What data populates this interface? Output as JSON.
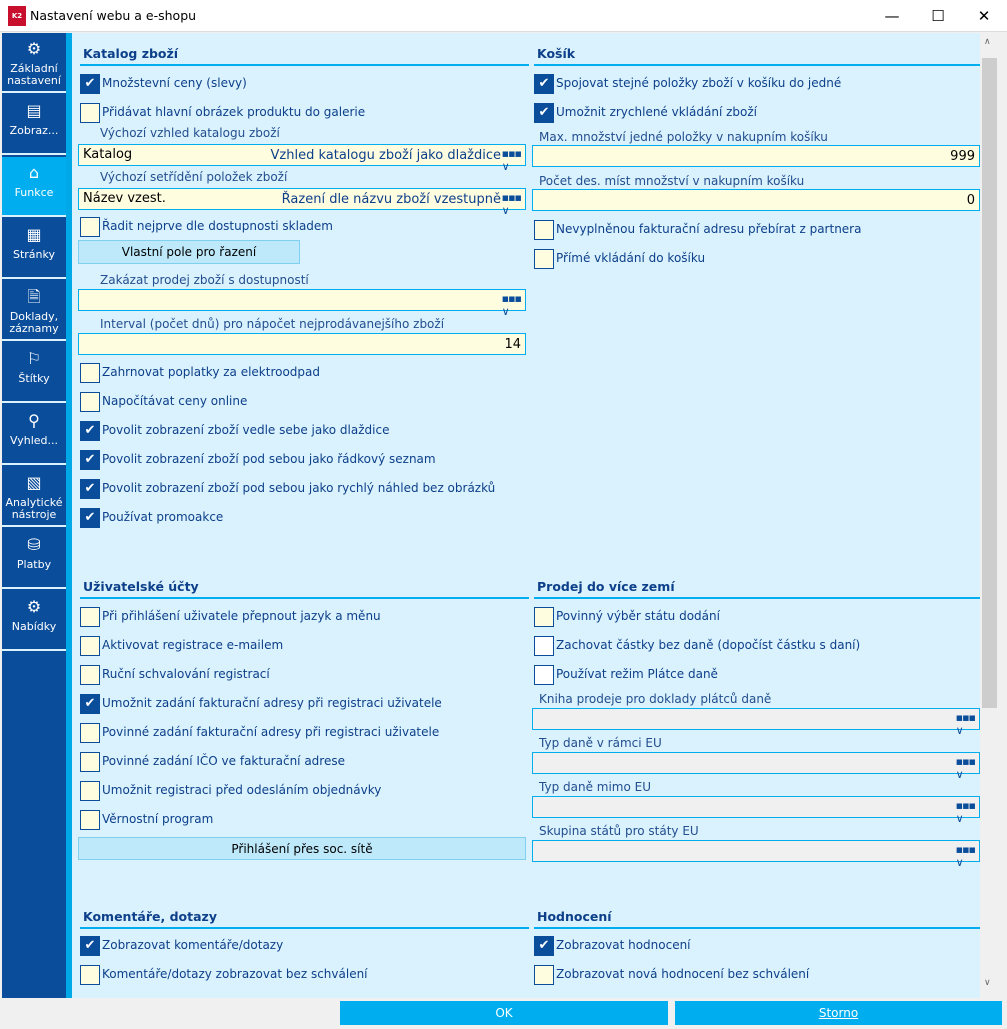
{
  "window": {
    "title": "Nastavení webu a e-shopu",
    "logo": "K2",
    "minimize": "—",
    "maximize": "☐",
    "close": "✕"
  },
  "sidebar": {
    "items": [
      {
        "label": "Základní nastavení",
        "icon": "gear-icon",
        "glyph": "⚙"
      },
      {
        "label": "Zobraz...",
        "icon": "list-icon",
        "glyph": "▤"
      },
      {
        "label": "Funkce",
        "icon": "tag-icon",
        "glyph": "⌂",
        "active": true
      },
      {
        "label": "Stránky",
        "icon": "page-icon",
        "glyph": "▦"
      },
      {
        "label": "Doklady, záznamy",
        "icon": "document-icon",
        "glyph": "🗎"
      },
      {
        "label": "Štítky",
        "icon": "bookmark-icon",
        "glyph": "⚐"
      },
      {
        "label": "Vyhled...",
        "icon": "search-icon",
        "glyph": "⚲"
      },
      {
        "label": "Analytické nástroje",
        "icon": "chart-icon",
        "glyph": "▧"
      },
      {
        "label": "Platby",
        "icon": "payment-icon",
        "glyph": "⛁"
      },
      {
        "label": "Nabídky",
        "icon": "discount-icon",
        "glyph": "⚙"
      }
    ]
  },
  "katalog": {
    "title": "Katalog zboží",
    "cb": [
      "Množstevní ceny (slevy)",
      "Přidávat hlavní obrázek produktu do galerie",
      "Řadit nejprve dle dostupnosti skladem",
      "Zahrnovat poplatky za elektroodpad",
      "Napočítávat ceny online",
      "Povolit zobrazení zboží vedle sebe jako dlaždice",
      "Povolit zobrazení zboží pod sebou jako řádkový seznam",
      "Povolit zobrazení zboží pod sebou jako rychlý náhled bez obrázků",
      "Používat promoakce"
    ],
    "checked": [
      true,
      false,
      false,
      false,
      false,
      true,
      true,
      true,
      true
    ],
    "vzhled_label": "Výchozí vzhled katalogu zboží",
    "vzhled_value": "Katalog",
    "vzhled_desc": "Vzhled katalogu zboží jako dlaždice",
    "setrideni_label": "Výchozí setřídění položek zboží",
    "setrideni_value": "Název vzest.",
    "setrideni_desc": "Řazení dle názvu zboží vzestupně",
    "vlastni_pole": "Vlastní pole pro řazení",
    "zakazat_label": "Zakázat prodej zboží s dostupností",
    "zakazat_value": "",
    "interval_label": "Interval (počet dnů) pro nápočet nejprodávanejšího zboží",
    "interval_value": "14"
  },
  "kosik": {
    "title": "Košík",
    "cb": [
      "Spojovat stejné položky zboží v košíku do jedné",
      "Umožnit zrychlené vkládání zboží",
      "Nevyplněnou fakturační adresu přebírat z partnera",
      "Přímé vkládání do košíku"
    ],
    "checked": [
      true,
      true,
      false,
      false
    ],
    "max_label": "Max. množství jedné položky v nakupním košíku",
    "max_value": "999",
    "des_label": "Počet des. míst množství v nakupním košíku",
    "des_value": "0"
  },
  "ucty": {
    "title": "Uživatelské účty",
    "cb": [
      "Při přihlášení uživatele přepnout jazyk a měnu",
      "Aktivovat registrace e-mailem",
      "Ruční schvalování registrací",
      "Umožnit zadání fakturační adresy při registraci uživatele",
      "Povinné zadání fakturační adresy při registraci uživatele",
      "Povinné zadání IČO ve fakturační adrese",
      "Umožnit registraci před odesláním objednávky",
      "Věrnostní program"
    ],
    "checked": [
      false,
      false,
      false,
      true,
      false,
      false,
      false,
      false
    ],
    "soc_button": "Přihlášení přes soc. sítě"
  },
  "prodej": {
    "title": "Prodej do více zemí",
    "cb": [
      "Povinný výběr státu dodání",
      "Zachovat částky bez daně (dopočíst částku s daní)",
      "Používat režim Plátce daně"
    ],
    "checked": [
      false,
      false,
      false
    ],
    "fields": [
      "Kniha prodeje pro doklady plátců daně",
      "Typ daně v rámci EU",
      "Typ daně mimo EU",
      "Skupina států pro státy EU"
    ]
  },
  "komentare": {
    "title": "Komentáře, dotazy",
    "cb": [
      "Zobrazovat komentáře/dotazy",
      "Komentáře/dotazy zobrazovat bez schválení"
    ],
    "checked": [
      true,
      false
    ]
  },
  "hodnoceni": {
    "title": "Hodnocení",
    "cb": [
      "Zobrazovat hodnocení",
      "Zobrazovat nová hodnocení bez schválení"
    ],
    "checked": [
      true,
      false
    ]
  },
  "footer": {
    "ok": "OK",
    "cancel": "Storno"
  },
  "colors": {
    "sidebar": "#0a4d9b",
    "accent": "#00aeef",
    "content_bg": "#d9f2fd",
    "field_bg": "#fffde0"
  }
}
